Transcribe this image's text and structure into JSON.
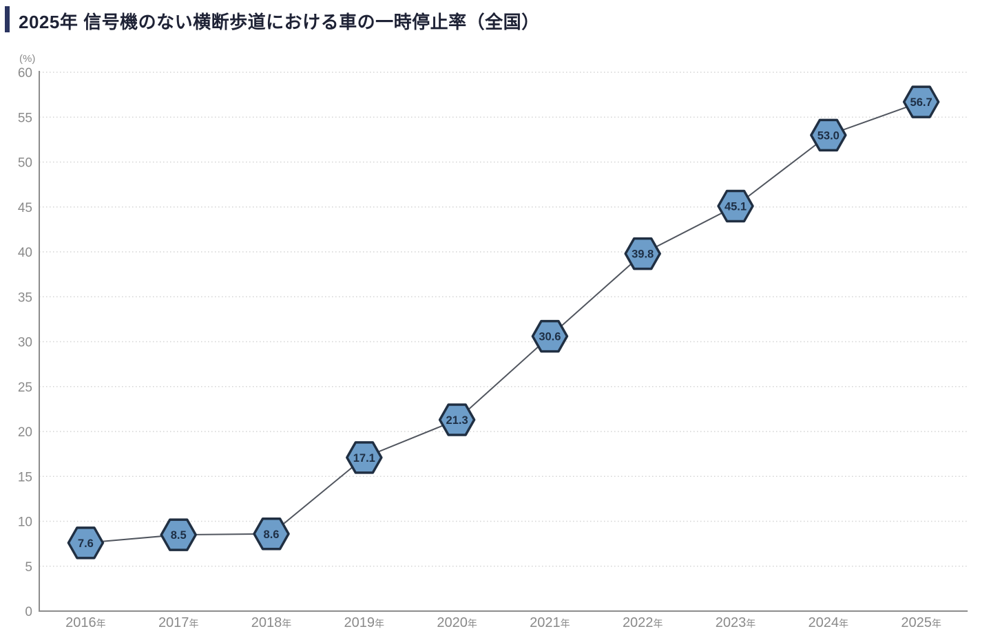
{
  "header": {
    "title": "2025年 信号機のない横断歩道における車の一時停止率（全国）",
    "accent_color": "#2b3560",
    "title_color": "#1e2235"
  },
  "chart_data": {
    "type": "line",
    "title": "2025年 信号機のない横断歩道における車の一時停止率（全国）",
    "unit_label": "(%)",
    "categories": [
      "2016年",
      "2017年",
      "2018年",
      "2019年",
      "2020年",
      "2021年",
      "2022年",
      "2023年",
      "2024年",
      "2025年"
    ],
    "values": [
      7.6,
      8.5,
      8.6,
      17.1,
      21.3,
      30.6,
      39.8,
      45.1,
      53.0,
      56.7
    ],
    "value_labels": [
      "7.6",
      "8.5",
      "8.6",
      "17.1",
      "21.3",
      "30.6",
      "39.8",
      "45.1",
      "53.0",
      "56.7"
    ],
    "ylim": [
      0,
      60
    ],
    "yticks": [
      0,
      5,
      10,
      15,
      20,
      25,
      30,
      35,
      40,
      45,
      50,
      55,
      60
    ],
    "xlabel": "",
    "ylabel": "",
    "grid": "dotted-horizontal",
    "legend": "none",
    "marker_shape": "hexagon",
    "colors": {
      "marker_fill": "#6d9dc9",
      "marker_border": "#202f42",
      "marker_text": "#1e2f45",
      "line": "#50555e",
      "grid": "#d4d4d4",
      "axis": "#8c8c8c",
      "tick_text": "#8a8a8a"
    }
  }
}
